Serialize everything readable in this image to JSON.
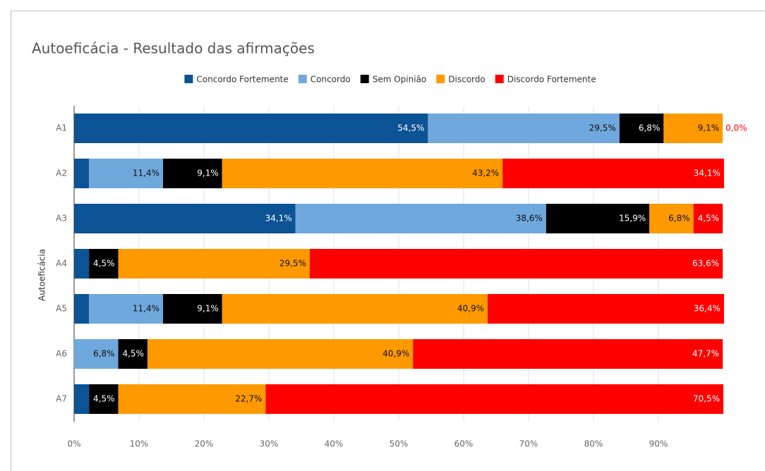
{
  "chart_data": {
    "type": "stacked_barh",
    "title": "Autoeficácia - Resultado das afirmações",
    "ylabel": "Autoeficácia",
    "categories": [
      "A1",
      "A2",
      "A3",
      "A4",
      "A5",
      "A6",
      "A7"
    ],
    "series": [
      {
        "name": "Concordo Fortemente",
        "color": "#0b5394",
        "values": [
          54.5,
          2.3,
          34.1,
          2.3,
          2.3,
          0.0,
          2.3
        ],
        "value_labels": [
          "54,5%",
          "2,3%",
          "34,1%",
          "2,3%",
          "2,3%",
          "0,0%",
          "2,3%"
        ]
      },
      {
        "name": "Concordo",
        "color": "#6fa8dc",
        "values": [
          29.5,
          11.4,
          38.6,
          0.0,
          11.4,
          6.8,
          0.0
        ],
        "value_labels": [
          "29,5%",
          "11,4%",
          "38,6%",
          "0,0%",
          "11,4%",
          "6,8%",
          "0,0%"
        ]
      },
      {
        "name": "Sem Opinião",
        "color": "#000000",
        "values": [
          6.8,
          9.1,
          15.9,
          4.5,
          9.1,
          4.5,
          4.5
        ],
        "value_labels": [
          "6,8%",
          "9,1%",
          "15,9%",
          "4,5%",
          "9,1%",
          "4,5%",
          "4,5%"
        ]
      },
      {
        "name": "Discordo",
        "color": "#ff9900",
        "values": [
          9.1,
          43.2,
          6.8,
          29.5,
          40.9,
          40.9,
          22.7
        ],
        "value_labels": [
          "9,1%",
          "43,2%",
          "6,8%",
          "29,5%",
          "40,9%",
          "40,9%",
          "22,7%"
        ]
      },
      {
        "name": "Discordo Fortemente",
        "color": "#ff0000",
        "values": [
          0.0,
          34.1,
          4.5,
          63.6,
          36.4,
          47.7,
          70.5
        ],
        "value_labels": [
          "0,0%",
          "34,1%",
          "4,5%",
          "63,6%",
          "36,4%",
          "47,7%",
          "70,5%"
        ]
      }
    ],
    "xlim": [
      0,
      100
    ],
    "xticks": [
      {
        "value": 0,
        "label": "0%"
      },
      {
        "value": 10,
        "label": "10%"
      },
      {
        "value": 20,
        "label": "20%"
      },
      {
        "value": 30,
        "label": "30%"
      },
      {
        "value": 40,
        "label": "40%"
      },
      {
        "value": 50,
        "label": "50%"
      },
      {
        "value": 60,
        "label": "60%"
      },
      {
        "value": 70,
        "label": "70%"
      },
      {
        "value": 80,
        "label": "80%"
      },
      {
        "value": 90,
        "label": "90%"
      }
    ],
    "grid": true,
    "legend": "top"
  }
}
